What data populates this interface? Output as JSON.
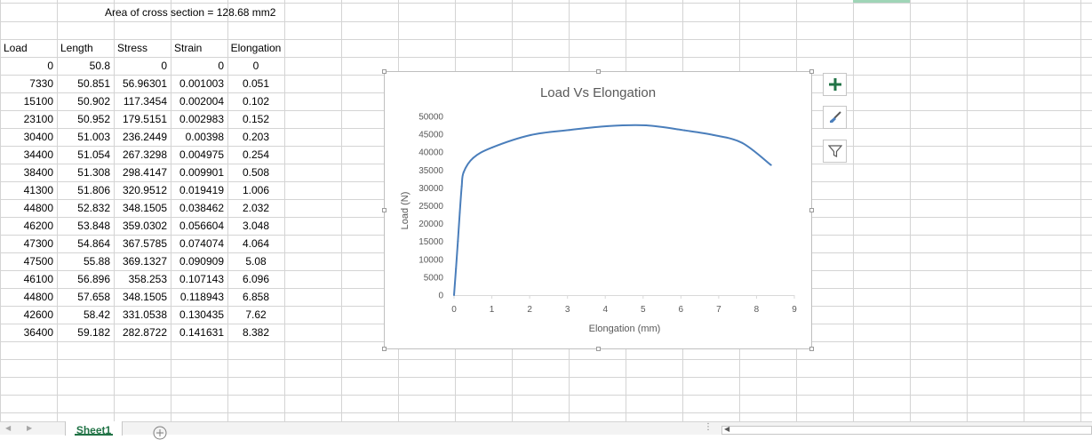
{
  "sheet": {
    "note": "Area of cross section = 128.68 mm2",
    "headers": [
      "Load",
      "Length",
      "Stress",
      "Strain",
      "Elongation"
    ],
    "rows": [
      [
        "0",
        "50.8",
        "0",
        "0",
        "0"
      ],
      [
        "7330",
        "50.851",
        "56.96301",
        "0.001003",
        "0.051"
      ],
      [
        "15100",
        "50.902",
        "117.3454",
        "0.002004",
        "0.102"
      ],
      [
        "23100",
        "50.952",
        "179.5151",
        "0.002983",
        "0.152"
      ],
      [
        "30400",
        "51.003",
        "236.2449",
        "0.00398",
        "0.203"
      ],
      [
        "34400",
        "51.054",
        "267.3298",
        "0.004975",
        "0.254"
      ],
      [
        "38400",
        "51.308",
        "298.4147",
        "0.009901",
        "0.508"
      ],
      [
        "41300",
        "51.806",
        "320.9512",
        "0.019419",
        "1.006"
      ],
      [
        "44800",
        "52.832",
        "348.1505",
        "0.038462",
        "2.032"
      ],
      [
        "46200",
        "53.848",
        "359.0302",
        "0.056604",
        "3.048"
      ],
      [
        "47300",
        "54.864",
        "367.5785",
        "0.074074",
        "4.064"
      ],
      [
        "47500",
        "55.88",
        "369.1327",
        "0.090909",
        "5.08"
      ],
      [
        "46100",
        "56.896",
        "358.253",
        "0.107143",
        "6.096"
      ],
      [
        "44800",
        "57.658",
        "348.1505",
        "0.118943",
        "6.858"
      ],
      [
        "42600",
        "58.42",
        "331.0538",
        "0.130435",
        "7.62"
      ],
      [
        "36400",
        "59.182",
        "282.8722",
        "0.141631",
        "8.382"
      ]
    ]
  },
  "chart_buttons": {
    "add_elements": "plus-icon",
    "styles": "paintbrush-icon",
    "filters": "funnel-icon"
  },
  "tabs": {
    "active": "Sheet1",
    "add_icon": "plus-circle-icon"
  },
  "colors": {
    "series": "#4a7ebb",
    "accent": "#217346",
    "gridline": "#d4d4d4"
  },
  "chart_data": {
    "type": "scatter",
    "title": "Load Vs Elongation",
    "xlabel": "Elongation (mm)",
    "ylabel": "Load (N)",
    "xlim": [
      0,
      9
    ],
    "ylim": [
      0,
      50000
    ],
    "x_ticks": [
      0,
      1,
      2,
      3,
      4,
      5,
      6,
      7,
      8,
      9
    ],
    "y_ticks": [
      0,
      5000,
      10000,
      15000,
      20000,
      25000,
      30000,
      35000,
      40000,
      45000,
      50000
    ],
    "grid": false,
    "legend": "none",
    "series": [
      {
        "x": [
          0,
          0.051,
          0.102,
          0.152,
          0.203,
          0.254,
          0.508,
          1.006,
          2.032,
          3.048,
          4.064,
          5.08,
          6.096,
          6.858,
          7.62,
          8.382
        ],
        "y": [
          0,
          7330,
          15100,
          23100,
          30400,
          34400,
          38400,
          41300,
          44800,
          46200,
          47300,
          47500,
          46100,
          44800,
          42600,
          36400
        ]
      }
    ]
  }
}
